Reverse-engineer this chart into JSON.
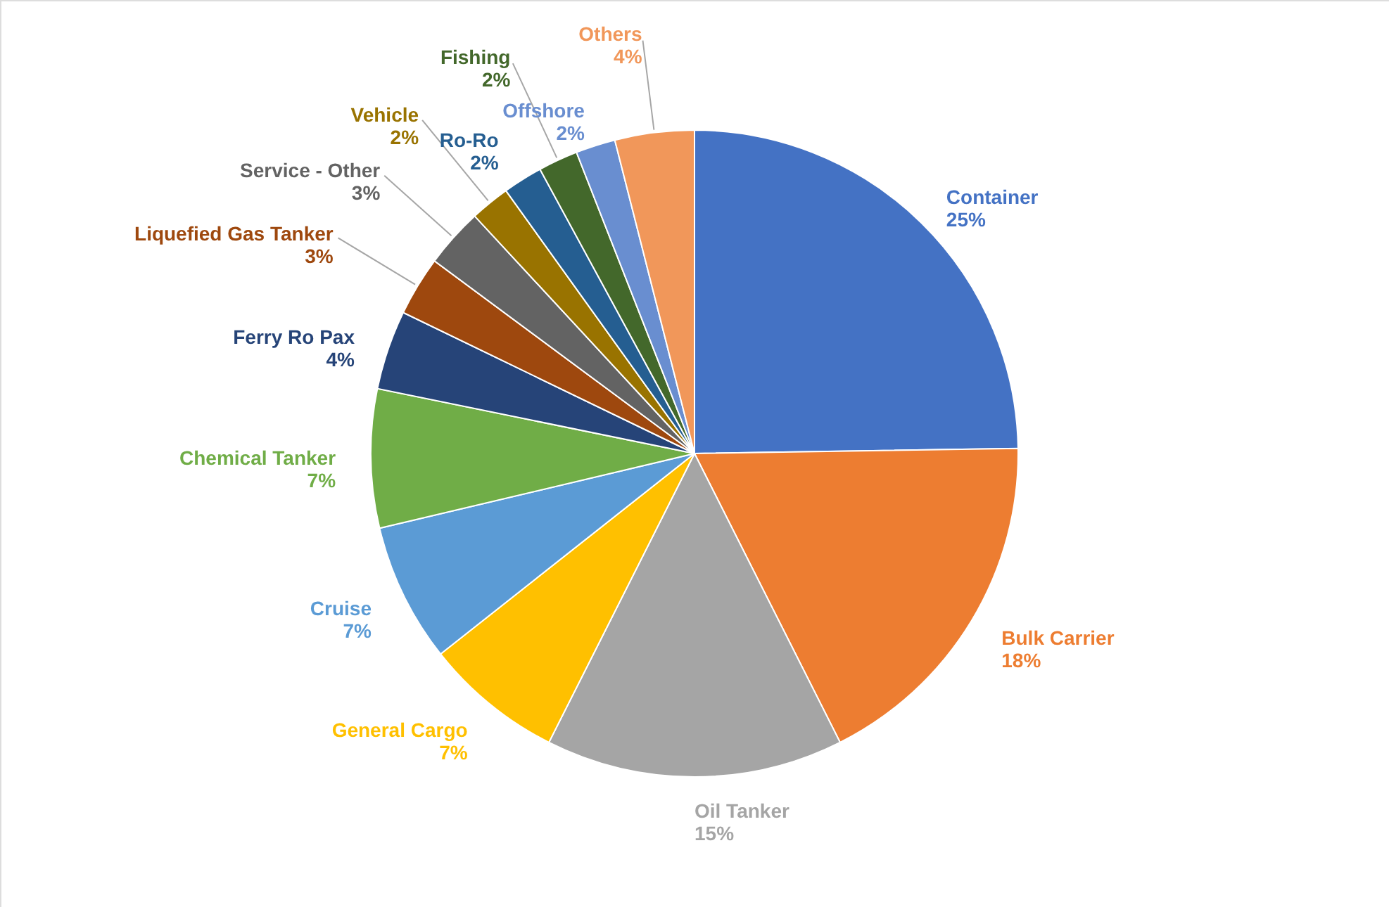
{
  "chart_data": {
    "type": "pie",
    "categories": [
      "Container",
      "Bulk Carrier",
      "Oil Tanker",
      "General Cargo",
      "Cruise",
      "Chemical Tanker",
      "Ferry Ro Pax",
      "Liquefied Gas Tanker",
      "Service - Other",
      "Vehicle",
      "Ro-Ro",
      "Fishing",
      "Offshore",
      "Others"
    ],
    "values": [
      25,
      18,
      15,
      7,
      7,
      7,
      4,
      3,
      3,
      2,
      2,
      2,
      2,
      4
    ],
    "value_labels": [
      "25%",
      "18%",
      "15%",
      "7%",
      "7%",
      "7%",
      "4%",
      "3%",
      "3%",
      "2%",
      "2%",
      "2%",
      "2%",
      "4%"
    ],
    "colors": [
      "#4472c4",
      "#ed7d31",
      "#a5a5a5",
      "#ffc000",
      "#5b9bd5",
      "#70ad47",
      "#264478",
      "#9e480e",
      "#636363",
      "#997300",
      "#255e91",
      "#43682b",
      "#698ed0",
      "#f1975a"
    ]
  }
}
